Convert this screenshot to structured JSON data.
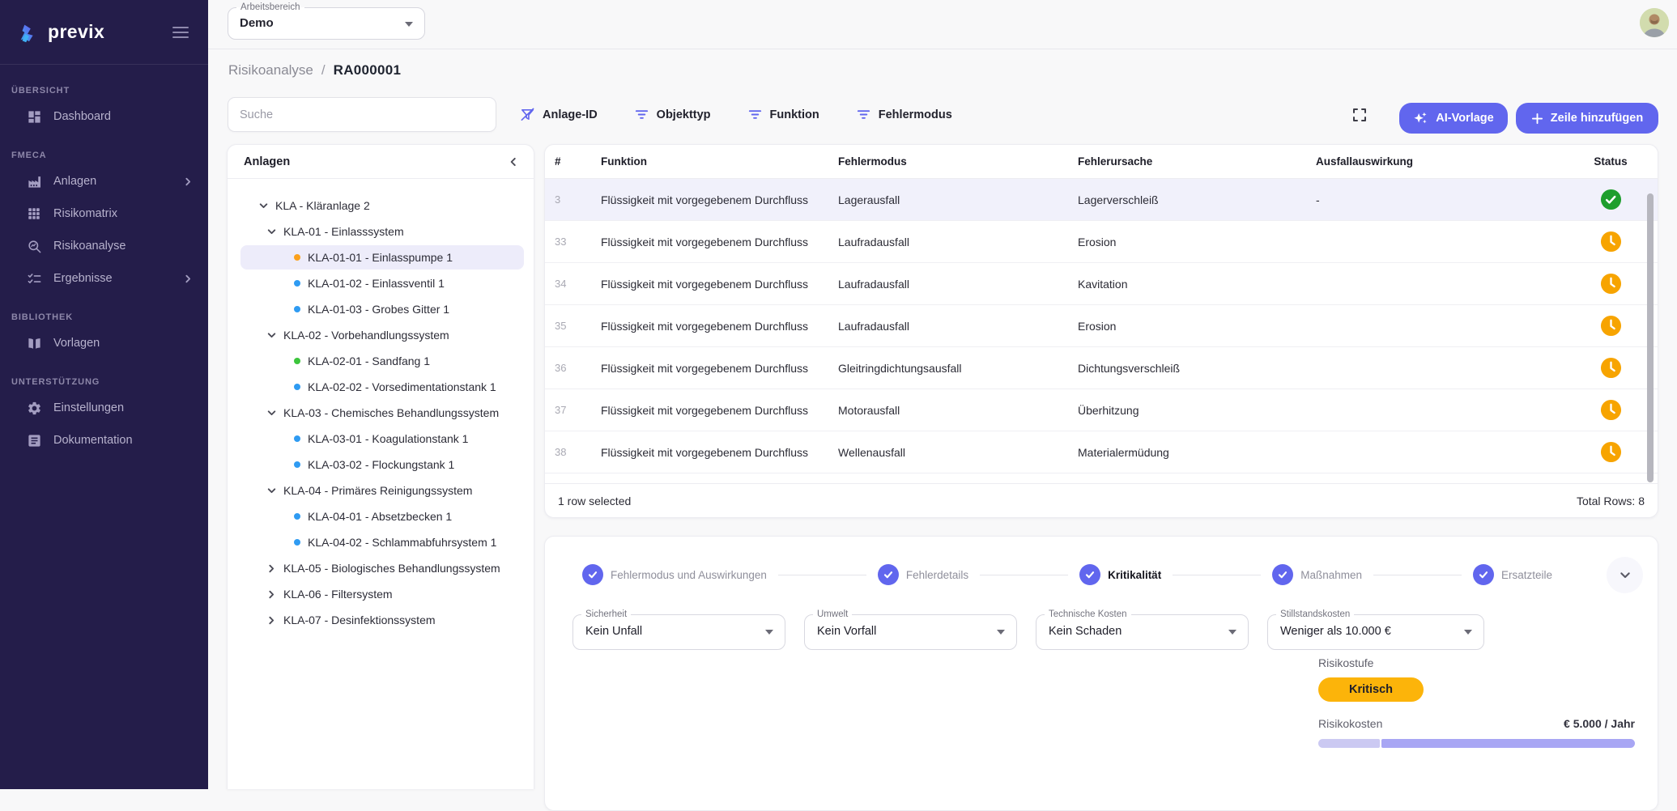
{
  "workspace": {
    "label": "Arbeitsbereich",
    "value": "Demo"
  },
  "sidebar": {
    "logo_text": "previx",
    "sections": [
      {
        "label": "ÜBERSICHT",
        "items": [
          {
            "label": "Dashboard",
            "icon": "dashboard-icon",
            "has_submenu": false
          }
        ]
      },
      {
        "label": "FMECA",
        "items": [
          {
            "label": "Anlagen",
            "icon": "factory-icon",
            "has_submenu": true
          },
          {
            "label": "Risikomatrix",
            "icon": "matrix-grid-icon",
            "has_submenu": false
          },
          {
            "label": "Risikoanalyse",
            "icon": "risk-analysis-icon",
            "has_submenu": false
          },
          {
            "label": "Ergebnisse",
            "icon": "results-checklist-icon",
            "has_submenu": true
          }
        ]
      },
      {
        "label": "BIBLIOTHEK",
        "items": [
          {
            "label": "Vorlagen",
            "icon": "book-icon",
            "has_submenu": false
          }
        ]
      },
      {
        "label": "UNTERSTÜTZUNG",
        "items": [
          {
            "label": "Einstellungen",
            "icon": "gear-icon",
            "has_submenu": false
          },
          {
            "label": "Dokumentation",
            "icon": "document-icon",
            "has_submenu": false
          }
        ]
      }
    ]
  },
  "breadcrumb": {
    "parent": "Risikoanalyse",
    "separator": "/",
    "current": "RA000001"
  },
  "toolbar": {
    "search_placeholder": "Suche",
    "filters": [
      {
        "label": "Anlage-ID",
        "icon": "filter-off-icon"
      },
      {
        "label": "Objekttyp",
        "icon": "filter-lines-icon"
      },
      {
        "label": "Funktion",
        "icon": "filter-lines-icon"
      },
      {
        "label": "Fehlermodus",
        "icon": "filter-lines-icon"
      }
    ],
    "ai_button": "AI-Vorlage",
    "add_button": "Zeile hinzufügen"
  },
  "tree": {
    "title": "Anlagen",
    "nodes": [
      {
        "label": "KLA - Kläranlage 2",
        "level": 0,
        "expanded": true
      },
      {
        "label": "KLA-01 - Einlasssystem",
        "level": 1,
        "expanded": true
      },
      {
        "label": "KLA-01-01 - Einlasspumpe 1",
        "level": 2,
        "dot": "orange",
        "selected": true
      },
      {
        "label": "KLA-01-02 - Einlassventil 1",
        "level": 2,
        "dot": "blue"
      },
      {
        "label": "KLA-01-03 - Grobes Gitter 1",
        "level": 2,
        "dot": "blue"
      },
      {
        "label": "KLA-02 - Vorbehandlungssystem",
        "level": 1,
        "expanded": true
      },
      {
        "label": "KLA-02-01 - Sandfang 1",
        "level": 2,
        "dot": "green"
      },
      {
        "label": "KLA-02-02 - Vorsedimentationstank 1",
        "level": 2,
        "dot": "blue"
      },
      {
        "label": "KLA-03 - Chemisches Behandlungssystem",
        "level": 1,
        "expanded": true
      },
      {
        "label": "KLA-03-01 - Koagulationstank 1",
        "level": 2,
        "dot": "blue"
      },
      {
        "label": "KLA-03-02 - Flockungstank 1",
        "level": 2,
        "dot": "blue"
      },
      {
        "label": "KLA-04 - Primäres Reinigungssystem",
        "level": 1,
        "expanded": true
      },
      {
        "label": "KLA-04-01 - Absetzbecken 1",
        "level": 2,
        "dot": "blue"
      },
      {
        "label": "KLA-04-02 - Schlammabfuhrsystem 1",
        "level": 2,
        "dot": "blue"
      },
      {
        "label": "KLA-05 - Biologisches Behandlungssystem",
        "level": 1,
        "expanded": false
      },
      {
        "label": "KLA-06 - Filtersystem",
        "level": 1,
        "expanded": false
      },
      {
        "label": "KLA-07 - Desinfektionssystem",
        "level": 1,
        "expanded": false
      }
    ]
  },
  "table": {
    "columns": [
      "#",
      "Funktion",
      "Fehlermodus",
      "Fehlerursache",
      "Ausfallauswirkung",
      "Status"
    ],
    "rows": [
      {
        "num": "3",
        "funktion": "Flüssigkeit mit vorgegebenem Durchfluss",
        "fehlermodus": "Lagerausfall",
        "fehlerursache": "Lagerverschleiß",
        "ausfallauswirkung": "-",
        "status": "done",
        "selected": true
      },
      {
        "num": "33",
        "funktion": "Flüssigkeit mit vorgegebenem Durchfluss",
        "fehlermodus": "Laufradausfall",
        "fehlerursache": "Erosion",
        "ausfallauswirkung": "",
        "status": "pending",
        "selected": false
      },
      {
        "num": "34",
        "funktion": "Flüssigkeit mit vorgegebenem Durchfluss",
        "fehlermodus": "Laufradausfall",
        "fehlerursache": "Kavitation",
        "ausfallauswirkung": "",
        "status": "pending",
        "selected": false
      },
      {
        "num": "35",
        "funktion": "Flüssigkeit mit vorgegebenem Durchfluss",
        "fehlermodus": "Laufradausfall",
        "fehlerursache": "Erosion",
        "ausfallauswirkung": "",
        "status": "pending",
        "selected": false
      },
      {
        "num": "36",
        "funktion": "Flüssigkeit mit vorgegebenem Durchfluss",
        "fehlermodus": "Gleitringdichtungsausfall",
        "fehlerursache": "Dichtungsverschleiß",
        "ausfallauswirkung": "",
        "status": "pending",
        "selected": false
      },
      {
        "num": "37",
        "funktion": "Flüssigkeit mit vorgegebenem Durchfluss",
        "fehlermodus": "Motorausfall",
        "fehlerursache": "Überhitzung",
        "ausfallauswirkung": "",
        "status": "pending",
        "selected": false
      },
      {
        "num": "38",
        "funktion": "Flüssigkeit mit vorgegebenem Durchfluss",
        "fehlermodus": "Wellenausfall",
        "fehlerursache": "Materialermüdung",
        "ausfallauswirkung": "",
        "status": "pending",
        "selected": false
      }
    ],
    "footer_left": "1 row selected",
    "footer_right": "Total Rows: 8"
  },
  "detail": {
    "steps": [
      {
        "label": "Fehlermodus und Auswirkungen",
        "state": "done",
        "active": false
      },
      {
        "label": "Fehlerdetails",
        "state": "done",
        "active": false
      },
      {
        "label": "Kritikalität",
        "state": "done",
        "active": true
      },
      {
        "label": "Maßnahmen",
        "state": "done",
        "active": false
      },
      {
        "label": "Ersatzteile",
        "state": "done",
        "active": false
      }
    ],
    "fields": [
      {
        "label": "Sicherheit",
        "value": "Kein Unfall"
      },
      {
        "label": "Umwelt",
        "value": "Kein Vorfall"
      },
      {
        "label": "Technische Kosten",
        "value": "Kein Schaden"
      },
      {
        "label": "Stillstandskosten",
        "value": "Weniger als 10.000 €"
      }
    ],
    "risk_level": {
      "label": "Risikostufe",
      "value": "Kritisch"
    },
    "risk_cost": {
      "label": "Risikokosten",
      "value": "€ 5.000 / Jahr",
      "bar_fill_ratio": 0.195
    }
  },
  "colors": {
    "accent": "#6166ee",
    "sidebar_bg": "#241d4a",
    "badge": "#fcb40a",
    "status_done": "#1e9e2d",
    "status_pending": "#f7a400",
    "dot_blue": "#2f9bf2",
    "dot_green": "#3cc53c",
    "dot_orange": "#fba11d",
    "bar_light": "#cbc9f2",
    "bar_dark": "#a8a6f4"
  }
}
